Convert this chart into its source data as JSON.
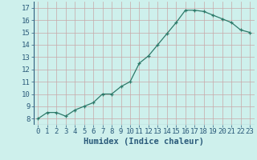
{
  "x": [
    0,
    1,
    2,
    3,
    4,
    5,
    6,
    7,
    8,
    9,
    10,
    11,
    12,
    13,
    14,
    15,
    16,
    17,
    18,
    19,
    20,
    21,
    22,
    23
  ],
  "y": [
    8.0,
    8.5,
    8.5,
    8.2,
    8.7,
    9.0,
    9.3,
    10.0,
    10.0,
    10.6,
    11.0,
    12.5,
    13.1,
    14.0,
    14.9,
    15.8,
    16.8,
    16.8,
    16.7,
    16.4,
    16.1,
    15.8,
    15.2,
    15.0
  ],
  "xlabel": "Humidex (Indice chaleur)",
  "line_color": "#2d7a6a",
  "marker": "+",
  "background_color": "#cef0ec",
  "grid_color": "#c8a8a8",
  "xlim": [
    -0.5,
    23.5
  ],
  "ylim": [
    7.5,
    17.5
  ],
  "yticks": [
    8,
    9,
    10,
    11,
    12,
    13,
    14,
    15,
    16,
    17
  ],
  "xticks": [
    0,
    1,
    2,
    3,
    4,
    5,
    6,
    7,
    8,
    9,
    10,
    11,
    12,
    13,
    14,
    15,
    16,
    17,
    18,
    19,
    20,
    21,
    22,
    23
  ],
  "xlabel_fontsize": 7.5,
  "tick_fontsize": 6.5,
  "text_color": "#2a5a7a"
}
